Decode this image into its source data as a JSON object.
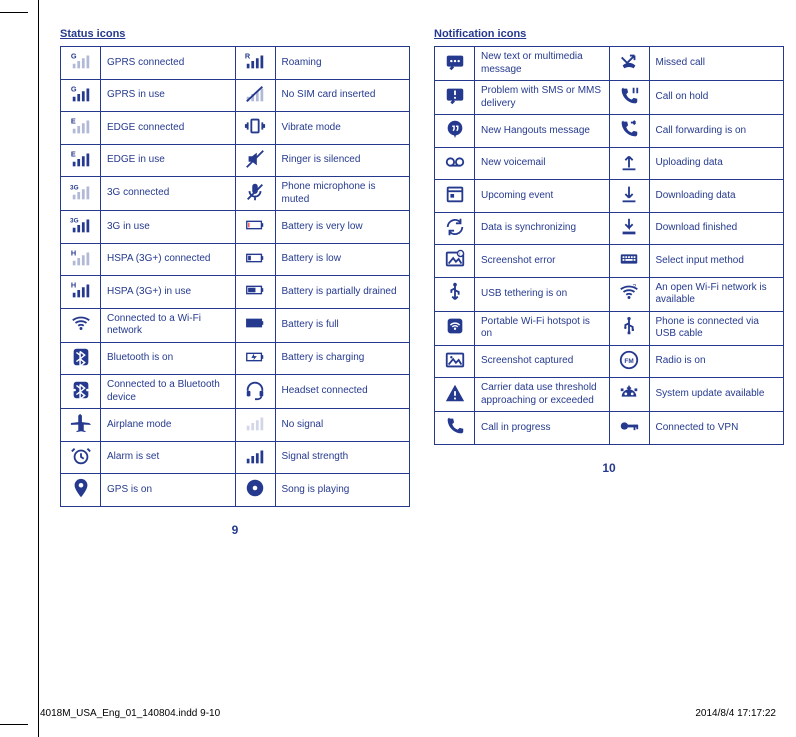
{
  "colors": {
    "brand": "#253a8e",
    "line": "#253a8e",
    "paper": "#ffffff"
  },
  "left": {
    "heading": "Status icons",
    "pagenum": "9",
    "rows": [
      {
        "icon": "gprs-connected-icon",
        "label": "GPRS connected",
        "icon2": "roaming-icon",
        "label2": "Roaming"
      },
      {
        "icon": "gprs-in-use-icon",
        "label": "GPRS in use",
        "icon2": "no-sim-icon",
        "label2": "No SIM card inserted"
      },
      {
        "icon": "edge-connected-icon",
        "label": "EDGE connected",
        "icon2": "vibrate-icon",
        "label2": "Vibrate mode"
      },
      {
        "icon": "edge-in-use-icon",
        "label": "EDGE in use",
        "icon2": "silenced-icon",
        "label2": "Ringer is silenced"
      },
      {
        "icon": "threeg-connected-icon",
        "label": "3G connected",
        "icon2": "mic-muted-icon",
        "label2": "Phone microphone is muted"
      },
      {
        "icon": "threeg-in-use-icon",
        "label": "3G in use",
        "icon2": "battery-very-low-icon",
        "label2": "Battery is very low"
      },
      {
        "icon": "hspa-connected-icon",
        "label": "HSPA (3G+) connected",
        "icon2": "battery-low-icon",
        "label2": "Battery is low"
      },
      {
        "icon": "hspa-in-use-icon",
        "label": "HSPA (3G+) in use",
        "icon2": "battery-partial-icon",
        "label2": "Battery is partially drained"
      },
      {
        "icon": "wifi-connected-icon",
        "label": "Connected to a Wi-Fi network",
        "icon2": "battery-full-icon",
        "label2": "Battery is full"
      },
      {
        "icon": "bluetooth-on-icon",
        "label": "Bluetooth is on",
        "icon2": "battery-charging-icon",
        "label2": "Battery is charging"
      },
      {
        "icon": "bluetooth-connected-icon",
        "label": "Connected to a Bluetooth device",
        "icon2": "headset-icon",
        "label2": "Headset connected"
      },
      {
        "icon": "airplane-icon",
        "label": "Airplane mode",
        "icon2": "no-signal-icon",
        "label2": "No signal"
      },
      {
        "icon": "alarm-icon",
        "label": "Alarm is set",
        "icon2": "signal-strength-icon",
        "label2": "Signal strength"
      },
      {
        "icon": "gps-icon",
        "label": "GPS is on",
        "icon2": "song-playing-icon",
        "label2": "Song is playing"
      }
    ]
  },
  "right": {
    "heading": "Notification icons",
    "pagenum": "10",
    "rows": [
      {
        "icon": "new-text-icon",
        "label": "New text or multimedia message",
        "icon2": "missed-call-icon",
        "label2": "Missed call"
      },
      {
        "icon": "sms-problem-icon",
        "label": "Problem with SMS or MMS delivery",
        "icon2": "call-hold-icon",
        "label2": "Call on hold"
      },
      {
        "icon": "hangouts-icon",
        "label": "New Hangouts message",
        "icon2": "call-forwarding-icon",
        "label2": "Call forwarding is on"
      },
      {
        "icon": "voicemail-icon",
        "label": "New voicemail",
        "icon2": "uploading-icon",
        "label2": "Uploading data"
      },
      {
        "icon": "upcoming-event-icon",
        "label": "Upcoming event",
        "icon2": "downloading-icon",
        "label2": "Downloading data"
      },
      {
        "icon": "sync-icon",
        "label": "Data is synchronizing",
        "icon2": "download-finished-icon",
        "label2": "Download finished"
      },
      {
        "icon": "screenshot-error-icon",
        "label": "Screenshot error",
        "icon2": "input-method-icon",
        "label2": "Select input method"
      },
      {
        "icon": "usb-tether-icon",
        "label": "USB tethering is on",
        "icon2": "open-wifi-icon",
        "label2": "An open Wi-Fi network is available"
      },
      {
        "icon": "hotspot-icon",
        "label": "Portable Wi-Fi hotspot is on",
        "icon2": "usb-connected-icon",
        "label2": "Phone is connected via USB cable"
      },
      {
        "icon": "screenshot-captured-icon",
        "label": "Screenshot captured",
        "icon2": "radio-icon",
        "label2": "Radio is on"
      },
      {
        "icon": "data-warning-icon",
        "label": "Carrier data use threshold approaching or exceeded",
        "icon2": "system-update-icon",
        "label2": "System update available"
      },
      {
        "icon": "call-in-progress-icon",
        "label": "Call in progress",
        "icon2": "vpn-icon",
        "label2": "Connected to VPN"
      }
    ]
  },
  "footer": {
    "slug": "4018M_USA_Eng_01_140804.indd   9-10",
    "timestamp": "2014/8/4   17:17:22"
  }
}
